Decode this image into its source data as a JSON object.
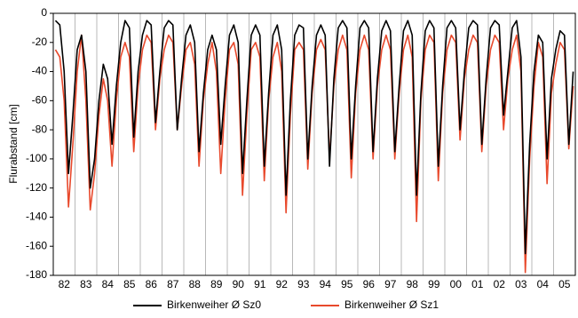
{
  "chart_data": {
    "type": "line",
    "y_label": "Flurabstand [cm]",
    "categories": [
      null,
      null,
      "82",
      null,
      null,
      null,
      null,
      "83",
      null,
      null,
      null,
      null,
      "84",
      null,
      null,
      null,
      null,
      "85",
      null,
      null,
      null,
      null,
      "86",
      null,
      null,
      null,
      null,
      "87",
      null,
      null,
      null,
      null,
      "88",
      null,
      null,
      null,
      null,
      "89",
      null,
      null,
      null,
      null,
      "90",
      null,
      null,
      null,
      null,
      "91",
      null,
      null,
      null,
      null,
      "92",
      null,
      null,
      null,
      null,
      "93",
      null,
      null,
      null,
      null,
      "94",
      null,
      null,
      null,
      null,
      "95",
      null,
      null,
      null,
      null,
      "96",
      null,
      null,
      null,
      null,
      "97",
      null,
      null,
      null,
      null,
      "98",
      null,
      null,
      null,
      null,
      "99",
      null,
      null,
      null,
      null,
      "00",
      null,
      null,
      null,
      null,
      "01",
      null,
      null,
      null,
      null,
      "02",
      null,
      null,
      null,
      null,
      "03",
      null,
      null,
      null,
      null,
      "04",
      null,
      null,
      null,
      null,
      "05",
      null,
      null
    ],
    "series": [
      {
        "name": "Birkenweiher Ø Sz0",
        "color": "#000000",
        "values": [
          -5,
          -8,
          -40,
          -110,
          -70,
          -25,
          -15,
          -40,
          -120,
          -100,
          -60,
          -35,
          -45,
          -90,
          -50,
          -20,
          -5,
          -10,
          -85,
          -40,
          -15,
          -5,
          -8,
          -75,
          -40,
          -10,
          -5,
          -8,
          -80,
          -45,
          -15,
          -8,
          -20,
          -95,
          -55,
          -25,
          -15,
          -25,
          -90,
          -50,
          -15,
          -8,
          -20,
          -110,
          -60,
          -15,
          -8,
          -15,
          -105,
          -55,
          -15,
          -8,
          -25,
          -125,
          -60,
          -15,
          -8,
          -10,
          -100,
          -50,
          -15,
          -8,
          -15,
          -105,
          -45,
          -10,
          -5,
          -10,
          -100,
          -50,
          -10,
          -5,
          -10,
          -95,
          -45,
          -12,
          -5,
          -12,
          -95,
          -50,
          -12,
          -5,
          -15,
          -125,
          -55,
          -12,
          -5,
          -10,
          -105,
          -50,
          -10,
          -5,
          -10,
          -80,
          -40,
          -10,
          -5,
          -8,
          -90,
          -45,
          -10,
          -5,
          -8,
          -70,
          -40,
          -10,
          -5,
          -30,
          -165,
          -90,
          -40,
          -15,
          -20,
          -100,
          -45,
          -25,
          -12,
          -15,
          -90,
          -40
        ]
      },
      {
        "name": "Birkenweiher Ø Sz1",
        "color": "#e8492c",
        "values": [
          -25,
          -30,
          -60,
          -133,
          -90,
          -40,
          -15,
          -60,
          -135,
          -110,
          -70,
          -45,
          -60,
          -105,
          -60,
          -30,
          -20,
          -30,
          -95,
          -50,
          -25,
          -15,
          -20,
          -80,
          -45,
          -25,
          -15,
          -20,
          -80,
          -50,
          -25,
          -20,
          -35,
          -105,
          -60,
          -35,
          -20,
          -40,
          -110,
          -60,
          -25,
          -20,
          -35,
          -125,
          -70,
          -25,
          -20,
          -30,
          -115,
          -60,
          -30,
          -20,
          -40,
          -137,
          -70,
          -25,
          -20,
          -25,
          -107,
          -55,
          -25,
          -18,
          -25,
          -100,
          -50,
          -25,
          -15,
          -25,
          -113,
          -55,
          -25,
          -15,
          -25,
          -100,
          -50,
          -25,
          -15,
          -25,
          -100,
          -55,
          -25,
          -15,
          -30,
          -143,
          -60,
          -25,
          -15,
          -20,
          -115,
          -55,
          -25,
          -15,
          -20,
          -87,
          -45,
          -25,
          -15,
          -20,
          -95,
          -50,
          -25,
          -15,
          -20,
          -80,
          -45,
          -25,
          -15,
          -40,
          -178,
          -100,
          -50,
          -20,
          -30,
          -117,
          -55,
          -35,
          -20,
          -25,
          -93,
          -50
        ]
      }
    ],
    "ylim": [
      -180,
      0
    ],
    "yticks": [
      -180,
      -160,
      -140,
      -120,
      -100,
      -80,
      -60,
      -40,
      -20,
      0
    ]
  }
}
